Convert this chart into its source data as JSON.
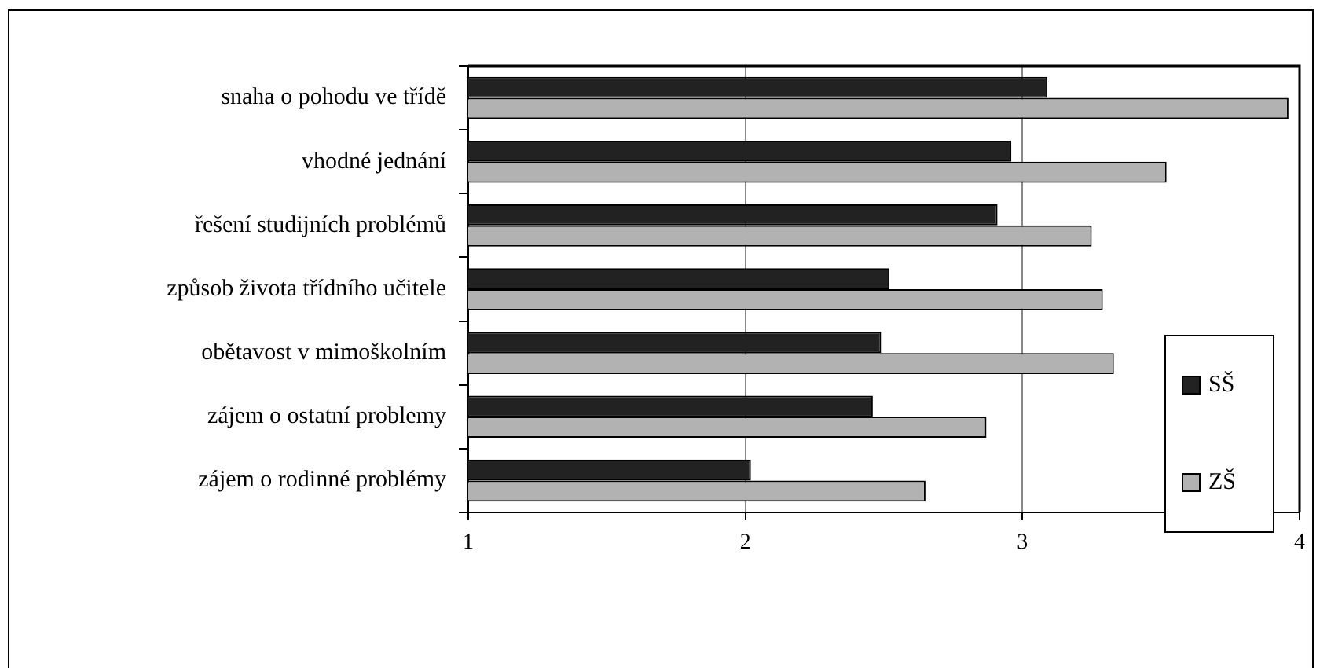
{
  "chart_data": {
    "type": "bar",
    "orientation": "horizontal",
    "categories": [
      "snaha o pohodu ve třídě",
      "vhodné jednání",
      "řešení studijních problémů",
      "způsob života třídního učitele",
      "obětavost v mimoškolním",
      "zájem o ostatní problemy",
      "zájem o rodinné problémy"
    ],
    "series": [
      {
        "name": "SŠ",
        "color": "#222222",
        "values": [
          3.09,
          2.96,
          2.91,
          2.52,
          2.49,
          2.46,
          2.02
        ]
      },
      {
        "name": "ZŠ",
        "color": "#b2b2b2",
        "values": [
          3.96,
          3.52,
          3.25,
          3.29,
          3.33,
          2.87,
          2.65
        ]
      }
    ],
    "xlim": [
      1,
      4
    ],
    "xticks": [
      1,
      2,
      3,
      4
    ],
    "grid": "x",
    "legend": "right"
  }
}
